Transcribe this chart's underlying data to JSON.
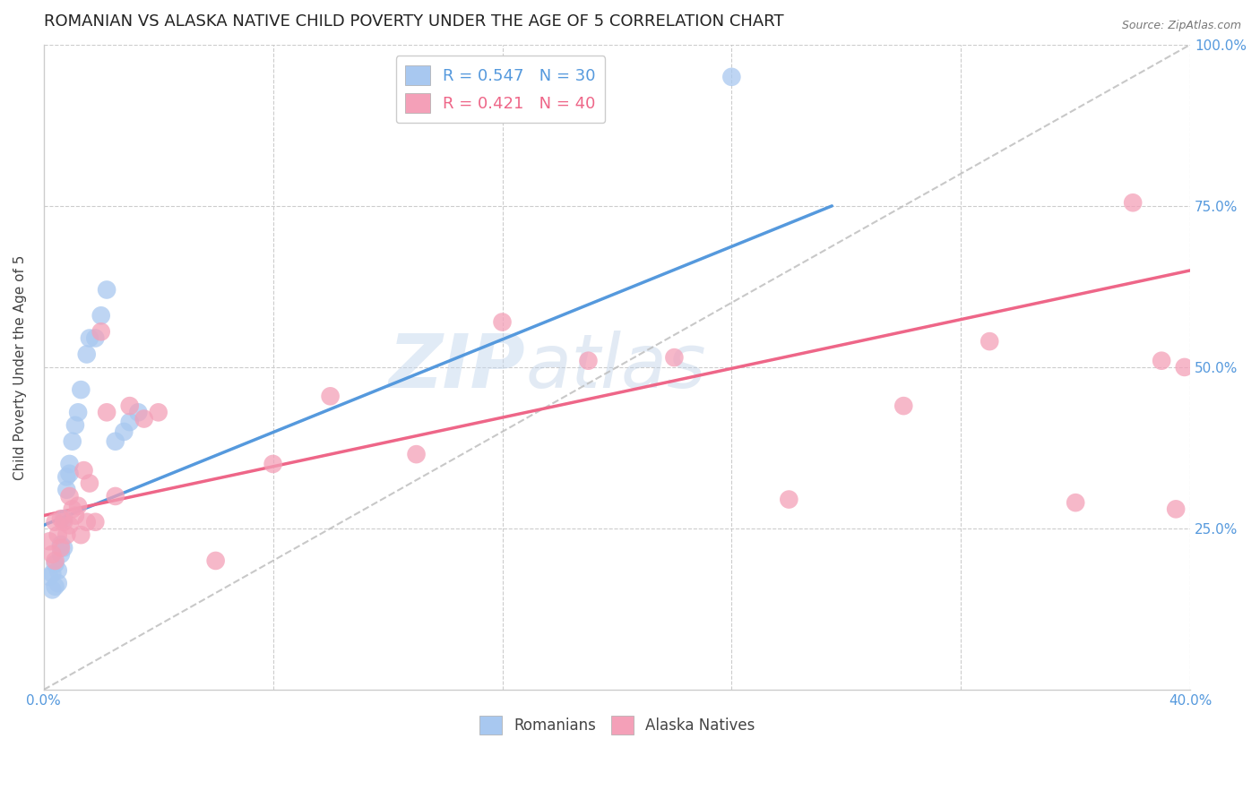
{
  "title": "ROMANIAN VS ALASKA NATIVE CHILD POVERTY UNDER THE AGE OF 5 CORRELATION CHART",
  "source": "Source: ZipAtlas.com",
  "ylabel": "Child Poverty Under the Age of 5",
  "xlim": [
    0.0,
    0.4
  ],
  "ylim": [
    0.0,
    1.0
  ],
  "xticks": [
    0.0,
    0.08,
    0.16,
    0.24,
    0.32,
    0.4
  ],
  "yticks": [
    0.0,
    0.25,
    0.5,
    0.75,
    1.0
  ],
  "title_fontsize": 13,
  "axis_label_fontsize": 11,
  "tick_fontsize": 11,
  "legend_r1": "R = 0.547",
  "legend_n1": "N = 30",
  "legend_r2": "R = 0.421",
  "legend_n2": "N = 40",
  "blue_color": "#A8C8F0",
  "pink_color": "#F4A0B8",
  "blue_line_color": "#5599DD",
  "pink_line_color": "#EE6688",
  "axis_color": "#5599DD",
  "grid_color": "#CCCCCC",
  "background_color": "#FFFFFF",
  "watermark_text": "ZIPatlas",
  "romanians_x": [
    0.002,
    0.003,
    0.003,
    0.004,
    0.004,
    0.005,
    0.005,
    0.006,
    0.006,
    0.007,
    0.007,
    0.008,
    0.008,
    0.009,
    0.009,
    0.01,
    0.011,
    0.012,
    0.013,
    0.015,
    0.016,
    0.018,
    0.02,
    0.022,
    0.025,
    0.028,
    0.03,
    0.033,
    0.16,
    0.24
  ],
  "romanians_y": [
    0.175,
    0.155,
    0.18,
    0.16,
    0.195,
    0.165,
    0.185,
    0.21,
    0.225,
    0.22,
    0.265,
    0.31,
    0.33,
    0.335,
    0.35,
    0.385,
    0.41,
    0.43,
    0.465,
    0.52,
    0.545,
    0.545,
    0.58,
    0.62,
    0.385,
    0.4,
    0.415,
    0.43,
    0.95,
    0.95
  ],
  "alaska_x": [
    0.002,
    0.003,
    0.004,
    0.004,
    0.005,
    0.006,
    0.006,
    0.007,
    0.008,
    0.009,
    0.009,
    0.01,
    0.011,
    0.012,
    0.013,
    0.014,
    0.015,
    0.016,
    0.018,
    0.02,
    0.022,
    0.025,
    0.03,
    0.035,
    0.04,
    0.06,
    0.08,
    0.1,
    0.13,
    0.16,
    0.19,
    0.22,
    0.26,
    0.3,
    0.33,
    0.36,
    0.38,
    0.39,
    0.395,
    0.398
  ],
  "alaska_y": [
    0.23,
    0.21,
    0.2,
    0.26,
    0.24,
    0.22,
    0.265,
    0.26,
    0.24,
    0.255,
    0.3,
    0.28,
    0.27,
    0.285,
    0.24,
    0.34,
    0.26,
    0.32,
    0.26,
    0.555,
    0.43,
    0.3,
    0.44,
    0.42,
    0.43,
    0.2,
    0.35,
    0.455,
    0.365,
    0.57,
    0.51,
    0.515,
    0.295,
    0.44,
    0.54,
    0.29,
    0.755,
    0.51,
    0.28,
    0.5
  ],
  "blue_line_x": [
    0.0,
    0.275
  ],
  "blue_line_y": [
    0.255,
    0.75
  ],
  "pink_line_x": [
    0.0,
    0.4
  ],
  "pink_line_y": [
    0.27,
    0.65
  ]
}
